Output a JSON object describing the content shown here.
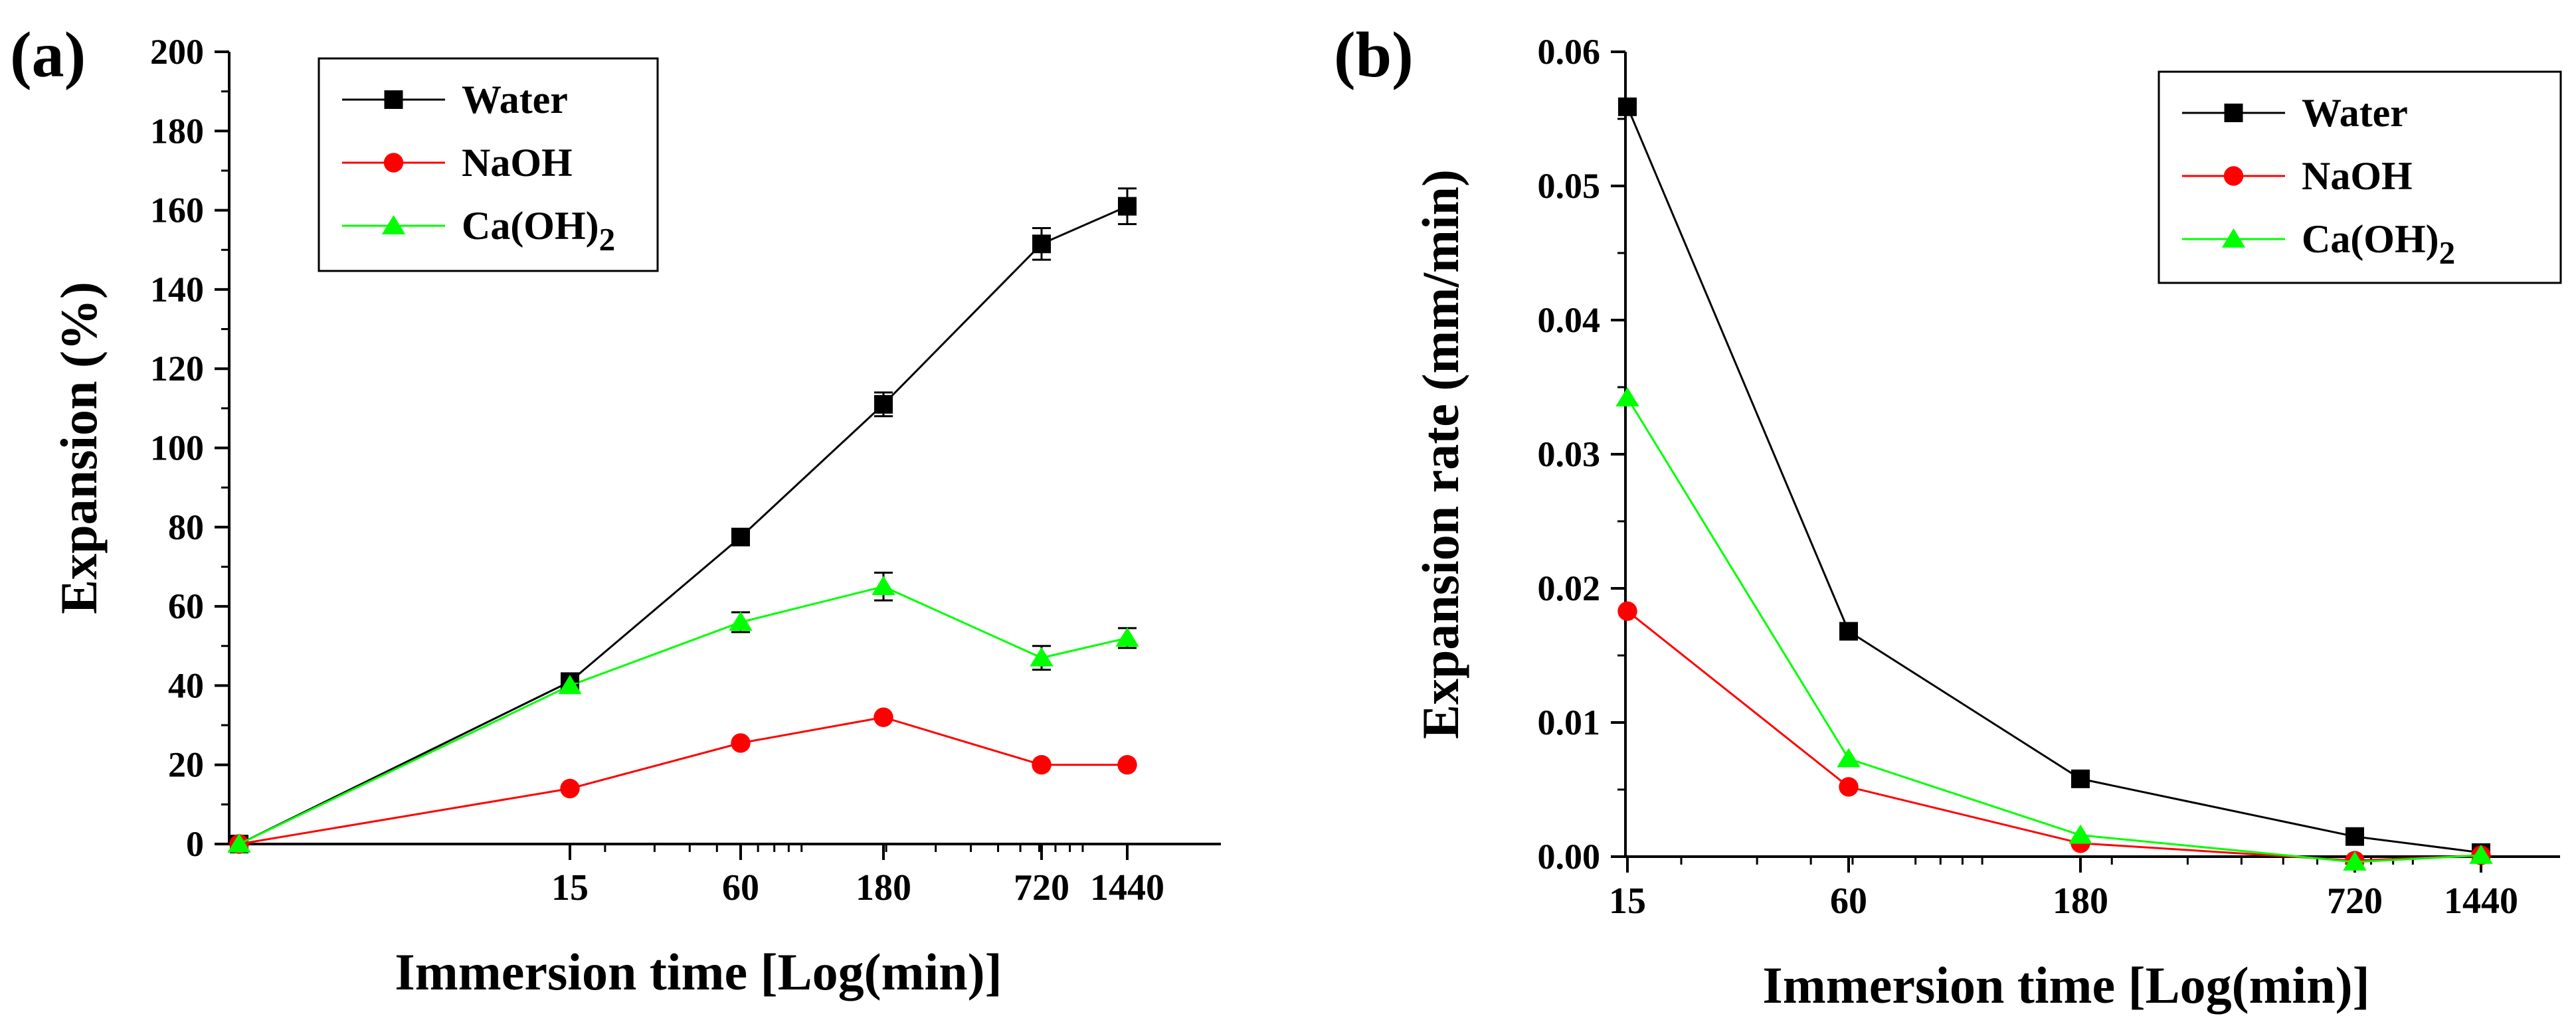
{
  "chart_data": [
    {
      "type": "line",
      "panel_label": "(a)",
      "title": "",
      "xlabel": "Immersion time [Log(min)]",
      "ylabel": "Expansion (%)",
      "x_scale": "log",
      "x_ticks": [
        15,
        60,
        180,
        720,
        1440
      ],
      "x_tick_labels": [
        "15",
        "60",
        "180",
        "720",
        "1440"
      ],
      "ylim": [
        0,
        200
      ],
      "y_ticks": [
        0,
        20,
        40,
        60,
        80,
        100,
        120,
        140,
        160,
        180,
        200
      ],
      "y_tick_labels": [
        "0",
        "20",
        "40",
        "60",
        "80",
        "100",
        "120",
        "140",
        "160",
        "180",
        "200"
      ],
      "x": [
        0,
        15,
        60,
        180,
        720,
        1440
      ],
      "legend": {
        "position": "top-left",
        "entries": [
          "Water",
          "NaOH",
          "Ca(OH)2"
        ]
      },
      "series": [
        {
          "name": "Water",
          "marker": "square",
          "color": "#000000",
          "values": [
            0,
            41,
            77.5,
            111,
            151.5,
            161
          ],
          "errors": [
            0,
            1.5,
            2,
            3,
            4,
            4.5
          ]
        },
        {
          "name": "NaOH",
          "marker": "circle",
          "color": "#ff0000",
          "values": [
            0,
            14,
            25.5,
            32,
            20,
            20
          ],
          "errors": [
            0,
            0,
            0,
            0,
            0,
            0
          ]
        },
        {
          "name": "Ca(OH)2",
          "marker": "triangle",
          "color": "#00ff00",
          "values": [
            0,
            40,
            56,
            65,
            47,
            52
          ],
          "errors": [
            0,
            1,
            2.5,
            3.5,
            3,
            2.5
          ]
        }
      ]
    },
    {
      "type": "line",
      "panel_label": "(b)",
      "title": "",
      "xlabel": "Immersion time [Log(min)]",
      "ylabel": "Expansion rate (mm/min)",
      "x_scale": "log",
      "x_ticks": [
        15,
        60,
        180,
        720,
        1440
      ],
      "x_tick_labels": [
        "15",
        "60",
        "180",
        "720",
        "1440"
      ],
      "ylim": [
        0,
        0.06
      ],
      "y_ticks": [
        0,
        0.01,
        0.02,
        0.03,
        0.04,
        0.05,
        0.06
      ],
      "y_tick_labels": [
        "0.00",
        "0.01",
        "0.02",
        "0.03",
        "0.04",
        "0.05",
        "0.06"
      ],
      "x": [
        15,
        60,
        180,
        720,
        1440
      ],
      "legend": {
        "position": "top-right",
        "entries": [
          "Water",
          "NaOH",
          "Ca(OH)2"
        ]
      },
      "series": [
        {
          "name": "Water",
          "marker": "square",
          "color": "#000000",
          "values": [
            0.0559,
            0.0168,
            0.0058,
            0.0015,
            0.0003
          ]
        },
        {
          "name": "NaOH",
          "marker": "circle",
          "color": "#ff0000",
          "values": [
            0.0183,
            0.0052,
            0.001,
            -0.0003,
            0.0001
          ]
        },
        {
          "name": "Ca(OH)2",
          "marker": "triangle",
          "color": "#00ff00",
          "values": [
            0.0342,
            0.0073,
            0.0016,
            -0.0004,
            0.0001
          ]
        }
      ]
    }
  ]
}
